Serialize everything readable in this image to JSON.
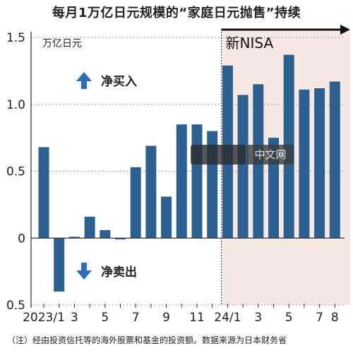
{
  "title": "每月1万亿日元规模的“家庭日元抛售”持续",
  "note": "（注）经由投资信托等的海外股票和基金的投资额。数据来源为日本财务省",
  "watermark": "中文网",
  "colors": {
    "bar": "#2c6090",
    "shade": "#f6e8e2",
    "arrow": "#2c6fb8",
    "grid": "#9a9a9a",
    "axis": "#333333"
  },
  "chart_data": {
    "type": "bar",
    "unit_label": "万亿日元",
    "ylim": [
      -0.5,
      1.5
    ],
    "yticks": [
      {
        "value": 1.5,
        "label": "1.5"
      },
      {
        "value": 1.0,
        "label": "1.0"
      },
      {
        "value": 0.5,
        "label": "0.5"
      },
      {
        "value": 0,
        "label": "0"
      },
      {
        "value": -0.5,
        "label": "0.5"
      }
    ],
    "categories": [
      "2023/1",
      "2023/2",
      "2023/3",
      "2023/4",
      "2023/5",
      "2023/6",
      "2023/7",
      "2023/8",
      "2023/9",
      "2023/10",
      "2023/11",
      "2023/12",
      "2024/1",
      "2024/2",
      "2024/3",
      "2024/4",
      "2024/5",
      "2024/6",
      "2024/7",
      "2024/8"
    ],
    "tick_labels": [
      "2023/1",
      "",
      "3",
      "",
      "5",
      "",
      "7",
      "",
      "9",
      "",
      "11",
      "",
      "24/1",
      "",
      "3",
      "",
      "5",
      "",
      "7",
      "8"
    ],
    "values": [
      0.68,
      -0.4,
      0.01,
      0.16,
      0.06,
      -0.01,
      0.53,
      0.69,
      0.31,
      0.85,
      0.85,
      0.8,
      1.29,
      1.07,
      1.15,
      0.75,
      1.37,
      1.11,
      1.12,
      1.17
    ],
    "annotations": {
      "buy": "净买入",
      "sell": "净卖出",
      "period": "新NISA"
    },
    "period_start_index": 12,
    "grid": true
  }
}
